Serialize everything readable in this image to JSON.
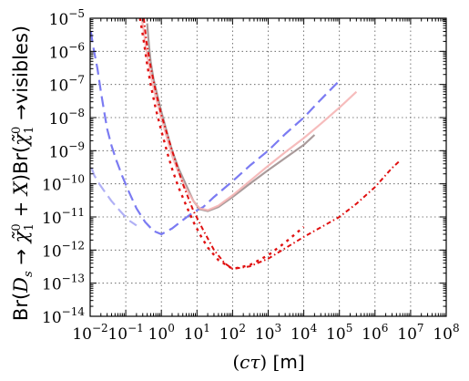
{
  "chart_data": {
    "type": "line",
    "xscale": "log",
    "yscale": "log",
    "xlim": [
      0.01,
      100000000
    ],
    "ylim": [
      1e-14,
      1e-05
    ],
    "grid": true,
    "xlabel_parts": [
      "(",
      "cτ",
      ")",
      " [",
      "m",
      "]"
    ],
    "ylabel_parts": {
      "br1": "Br(",
      "ds": "D",
      "ds_sub": "s",
      "arrow1": " → ",
      "chi": "χ̃",
      "chi_sup": "0",
      "chi_sub": "1",
      "plusx": " + X",
      "br2": ")Br(",
      "arrow2": " →visibles)"
    },
    "xticks": [
      {
        "base": "10",
        "exp": "−2",
        "value": 0.01
      },
      {
        "base": "10",
        "exp": "−1",
        "value": 0.1
      },
      {
        "base": "10",
        "exp": "0",
        "value": 1
      },
      {
        "base": "10",
        "exp": "1",
        "value": 10
      },
      {
        "base": "10",
        "exp": "2",
        "value": 100
      },
      {
        "base": "10",
        "exp": "3",
        "value": 1000
      },
      {
        "base": "10",
        "exp": "4",
        "value": 10000
      },
      {
        "base": "10",
        "exp": "5",
        "value": 100000
      },
      {
        "base": "10",
        "exp": "6",
        "value": 1000000
      },
      {
        "base": "10",
        "exp": "7",
        "value": 10000000
      },
      {
        "base": "10",
        "exp": "8",
        "value": 100000000
      }
    ],
    "yticks": [
      {
        "base": "10",
        "exp": "−14",
        "value": 1e-14
      },
      {
        "base": "10",
        "exp": "−13",
        "value": 1e-13
      },
      {
        "base": "10",
        "exp": "−12",
        "value": 1e-12
      },
      {
        "base": "10",
        "exp": "−11",
        "value": 1e-11
      },
      {
        "base": "10",
        "exp": "−10",
        "value": 1e-10
      },
      {
        "base": "10",
        "exp": "−9",
        "value": 1e-09
      },
      {
        "base": "10",
        "exp": "−8",
        "value": 1e-08
      },
      {
        "base": "10",
        "exp": "−7",
        "value": 1e-07
      },
      {
        "base": "10",
        "exp": "−6",
        "value": 1e-06
      },
      {
        "base": "10",
        "exp": "−5",
        "value": 1e-05
      }
    ],
    "series": [
      {
        "color": "#7b7bf2",
        "dash": "12 6",
        "width": 2.2,
        "opacity": 1,
        "points": [
          [
            0.0105,
            4e-06
          ],
          [
            0.012,
            1.5e-06
          ],
          [
            0.016,
            3e-07
          ],
          [
            0.02,
            6e-08
          ],
          [
            0.025,
            1.4e-08
          ],
          [
            0.03,
            4.5e-09
          ],
          [
            0.04,
            1.4e-09
          ],
          [
            0.055,
            5e-10
          ],
          [
            0.08,
            1.7e-10
          ],
          [
            0.12,
            6e-11
          ],
          [
            0.2,
            1.8e-11
          ],
          [
            0.35,
            7e-12
          ],
          [
            0.6,
            3.8e-12
          ],
          [
            1,
            3e-12
          ],
          [
            2,
            4.5e-12
          ],
          [
            4,
            8e-12
          ],
          [
            8,
            1.4e-11
          ],
          [
            15,
            2e-11
          ],
          [
            30,
            4e-11
          ],
          [
            100,
            1.2e-10
          ],
          [
            300,
            3.5e-10
          ],
          [
            1000,
            1e-09
          ],
          [
            3000,
            3.2e-09
          ],
          [
            10000,
            1e-08
          ],
          [
            30000,
            3.5e-08
          ],
          [
            100000,
            1.3e-07
          ]
        ]
      },
      {
        "color": "#b0b0f5",
        "dash": "12 6",
        "width": 2.2,
        "opacity": 1,
        "points": [
          [
            0.011,
            3e-10
          ],
          [
            0.013,
            1.8e-10
          ],
          [
            0.018,
            1e-10
          ],
          [
            0.025,
            6e-11
          ],
          [
            0.04,
            3e-11
          ],
          [
            0.07,
            1.5e-11
          ],
          [
            0.12,
            8e-12
          ],
          [
            0.2,
            5.5e-12
          ]
        ]
      },
      {
        "color": "#9b8a8a",
        "dash": "",
        "width": 2.2,
        "opacity": 0.85,
        "points": [
          [
            0.4,
            7e-06
          ],
          [
            0.45,
            1.5e-06
          ],
          [
            0.5,
            5e-07
          ],
          [
            0.6,
            1.5e-07
          ],
          [
            0.8,
            4e-08
          ],
          [
            1,
            1.5e-08
          ],
          [
            1.5,
            3e-09
          ],
          [
            2,
            1e-09
          ],
          [
            3,
            3e-10
          ],
          [
            5,
            9e-11
          ],
          [
            8,
            3e-11
          ],
          [
            12,
            1.7e-11
          ],
          [
            20,
            1.5e-11
          ],
          [
            40,
            2e-11
          ],
          [
            100,
            4e-11
          ],
          [
            300,
            1e-10
          ],
          [
            1000,
            2.6e-10
          ],
          [
            3000,
            6e-10
          ],
          [
            10000,
            1.5e-09
          ],
          [
            20000,
            3e-09
          ]
        ]
      },
      {
        "color": "#f5b5b5",
        "dash": "",
        "width": 2.2,
        "opacity": 0.9,
        "points": [
          [
            0.28,
            1e-05
          ],
          [
            0.32,
            4e-06
          ],
          [
            0.38,
            1e-06
          ],
          [
            0.5,
            2e-07
          ],
          [
            0.7,
            4e-08
          ],
          [
            1,
            1e-08
          ],
          [
            1.5,
            2e-09
          ],
          [
            2,
            7e-10
          ],
          [
            3,
            2.2e-10
          ],
          [
            5,
            7e-11
          ],
          [
            8,
            3e-11
          ],
          [
            12,
            1.8e-11
          ],
          [
            20,
            1.6e-11
          ],
          [
            40,
            2.2e-11
          ],
          [
            100,
            4.5e-11
          ],
          [
            300,
            1.2e-10
          ],
          [
            1000,
            3.5e-10
          ],
          [
            3000,
            9e-10
          ],
          [
            10000,
            2.4e-09
          ],
          [
            30000,
            6.5e-09
          ],
          [
            100000,
            2e-08
          ],
          [
            300000,
            6e-08
          ]
        ]
      },
      {
        "color": "#e01010",
        "dash": "3 5",
        "width": 2.4,
        "opacity": 1,
        "points": [
          [
            0.25,
            1e-05
          ],
          [
            0.28,
            5e-06
          ],
          [
            0.32,
            2e-06
          ],
          [
            0.4,
            4e-07
          ],
          [
            0.5,
            1e-07
          ],
          [
            0.7,
            1.8e-08
          ],
          [
            1,
            4e-09
          ],
          [
            1.5,
            8e-10
          ],
          [
            2,
            2.8e-10
          ],
          [
            3,
            8e-11
          ],
          [
            5,
            2.2e-11
          ],
          [
            8,
            7e-12
          ],
          [
            12,
            3e-12
          ],
          [
            20,
            1.2e-12
          ],
          [
            40,
            5e-13
          ],
          [
            100,
            2.7e-13
          ],
          [
            300,
            3.5e-13
          ],
          [
            1000,
            7e-13
          ],
          [
            3000,
            1.7e-12
          ],
          [
            10000,
            5e-12
          ]
        ]
      },
      {
        "color": "#e01010",
        "dash": "5 3 1.5 3",
        "width": 2.0,
        "opacity": 1,
        "points": [
          [
            0.32,
            1e-05
          ],
          [
            0.38,
            2e-06
          ],
          [
            0.5,
            3.5e-07
          ],
          [
            0.7,
            6e-08
          ],
          [
            1,
            1.2e-08
          ],
          [
            2,
            1e-09
          ],
          [
            4,
            1e-10
          ],
          [
            8,
            1.5e-11
          ],
          [
            15,
            4e-12
          ],
          [
            30,
            1e-12
          ],
          [
            60,
            4e-13
          ],
          [
            100,
            2.7e-13
          ],
          [
            300,
            3.2e-13
          ],
          [
            1000,
            5.5e-13
          ],
          [
            10000,
            2.5e-12
          ],
          [
            100000,
            1e-11
          ],
          [
            300000,
            2.5e-11
          ],
          [
            1000000,
            8e-11
          ],
          [
            3000000,
            3e-10
          ],
          [
            5000000,
            5e-10
          ]
        ]
      }
    ]
  }
}
